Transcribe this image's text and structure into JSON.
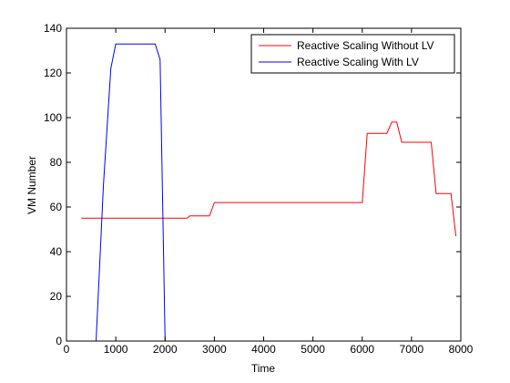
{
  "chart_data": {
    "type": "line",
    "title": "",
    "xlabel": "Time",
    "ylabel": "VM Number",
    "xlim": [
      0,
      8000
    ],
    "ylim": [
      0,
      140
    ],
    "xticks": [
      0,
      1000,
      2000,
      3000,
      4000,
      5000,
      6000,
      7000,
      8000
    ],
    "yticks": [
      0,
      20,
      40,
      60,
      80,
      100,
      120,
      140
    ],
    "grid": false,
    "legend_position": "top-right",
    "series": [
      {
        "name": "Reactive Scaling Without LV",
        "color": "#ff0000",
        "x": [
          300,
          2450,
          2500,
          2900,
          3000,
          6000,
          6100,
          6500,
          6600,
          6700,
          6800,
          7400,
          7500,
          7800,
          7900
        ],
        "y": [
          55,
          55,
          56,
          56,
          62,
          62,
          93,
          93,
          98,
          98,
          89,
          89,
          66,
          66,
          47
        ]
      },
      {
        "name": "Reactive Scaling With LV",
        "color": "#0000ff",
        "x": [
          600,
          750,
          900,
          1000,
          1800,
          1900,
          2000
        ],
        "y": [
          0,
          70,
          122,
          133,
          133,
          126,
          0
        ]
      }
    ]
  }
}
